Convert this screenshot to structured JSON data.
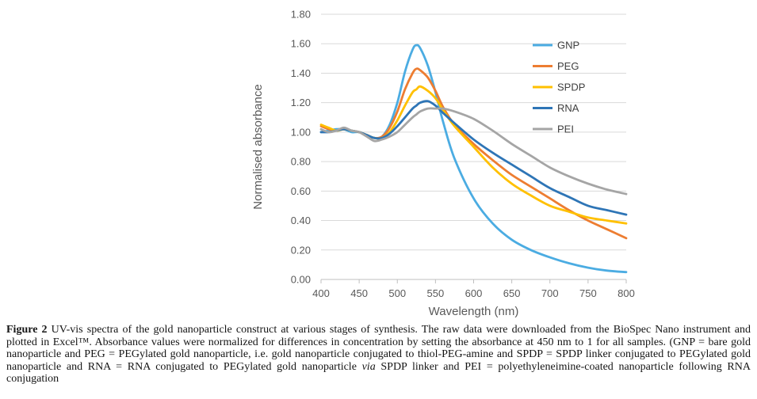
{
  "figure": {
    "caption": {
      "label": "Figure 2",
      "body_before_italic": " UV-vis spectra of the gold nanoparticle construct at various stages of synthesis. The raw data were downloaded from the BioSpec Nano instrument and plotted in Excel™. Absorbance values were normalized for differences in concentration by setting the absorbance at 450 nm to 1 for all samples. (GNP = bare gold nanoparticle and PEG = PEGylated gold nanoparticle, i.e. gold nanoparticle conjugated to thiol-PEG-amine and SPDP = SPDP linker conjugated to PEGylated gold nanoparticle and RNA = RNA conjugated to PEGylated gold nanoparticle ",
      "italic_word": "via",
      "body_after_italic": " SPDP linker and PEI = polyethyleneimine-coated nanoparticle following RNA conjugation"
    }
  },
  "chart_data": {
    "type": "line",
    "title": "",
    "xlabel": "Wavelength (nm)",
    "ylabel": "Normalised absorbance",
    "xlim": [
      400,
      800
    ],
    "ylim": [
      0.0,
      1.8
    ],
    "x_ticks": [
      400,
      450,
      500,
      550,
      600,
      650,
      700,
      750,
      800
    ],
    "y_ticks": [
      "0.00",
      "0.20",
      "0.40",
      "0.60",
      "0.80",
      "1.00",
      "1.20",
      "1.40",
      "1.60",
      "1.80"
    ],
    "grid": "horizontal",
    "legend_position": "right-inside",
    "x": [
      400,
      410,
      420,
      430,
      440,
      450,
      460,
      470,
      480,
      490,
      500,
      510,
      520,
      525,
      530,
      540,
      550,
      560,
      575,
      600,
      625,
      650,
      675,
      700,
      725,
      750,
      775,
      800
    ],
    "series": [
      {
        "name": "GNP",
        "color": "#4BACE2",
        "values": [
          1.0,
          1.01,
          1.02,
          1.02,
          1.0,
          1.0,
          0.98,
          0.96,
          0.97,
          1.05,
          1.2,
          1.41,
          1.56,
          1.59,
          1.57,
          1.45,
          1.27,
          1.07,
          0.82,
          0.55,
          0.38,
          0.27,
          0.2,
          0.15,
          0.11,
          0.08,
          0.06,
          0.05
        ]
      },
      {
        "name": "PEG",
        "color": "#ED7D31",
        "values": [
          1.04,
          1.02,
          1.01,
          1.02,
          1.01,
          1.0,
          0.98,
          0.96,
          0.97,
          1.03,
          1.14,
          1.29,
          1.4,
          1.43,
          1.42,
          1.37,
          1.28,
          1.17,
          1.05,
          0.92,
          0.81,
          0.71,
          0.63,
          0.55,
          0.47,
          0.4,
          0.34,
          0.28
        ]
      },
      {
        "name": "SPDP",
        "color": "#FFC000",
        "values": [
          1.05,
          1.03,
          1.01,
          1.02,
          1.01,
          1.0,
          0.98,
          0.96,
          0.96,
          1.0,
          1.08,
          1.18,
          1.27,
          1.29,
          1.31,
          1.28,
          1.23,
          1.15,
          1.04,
          0.9,
          0.76,
          0.65,
          0.57,
          0.5,
          0.46,
          0.42,
          0.4,
          0.38
        ]
      },
      {
        "name": "RNA",
        "color": "#2E75B6",
        "values": [
          1.0,
          1.0,
          1.01,
          1.02,
          1.01,
          1.0,
          0.98,
          0.96,
          0.96,
          0.99,
          1.04,
          1.1,
          1.16,
          1.18,
          1.2,
          1.21,
          1.18,
          1.13,
          1.06,
          0.95,
          0.86,
          0.78,
          0.7,
          0.62,
          0.56,
          0.5,
          0.47,
          0.44
        ]
      },
      {
        "name": "PEI",
        "color": "#A5A5A5",
        "values": [
          1.02,
          1.0,
          1.01,
          1.03,
          1.01,
          1.0,
          0.97,
          0.94,
          0.95,
          0.97,
          1.0,
          1.05,
          1.1,
          1.12,
          1.14,
          1.16,
          1.16,
          1.16,
          1.14,
          1.09,
          1.01,
          0.92,
          0.84,
          0.76,
          0.7,
          0.65,
          0.61,
          0.58
        ]
      }
    ],
    "colors": {
      "gridline": "#D9D9D9",
      "axis_line": "#BFBFBF",
      "tick_text": "#595959"
    }
  }
}
